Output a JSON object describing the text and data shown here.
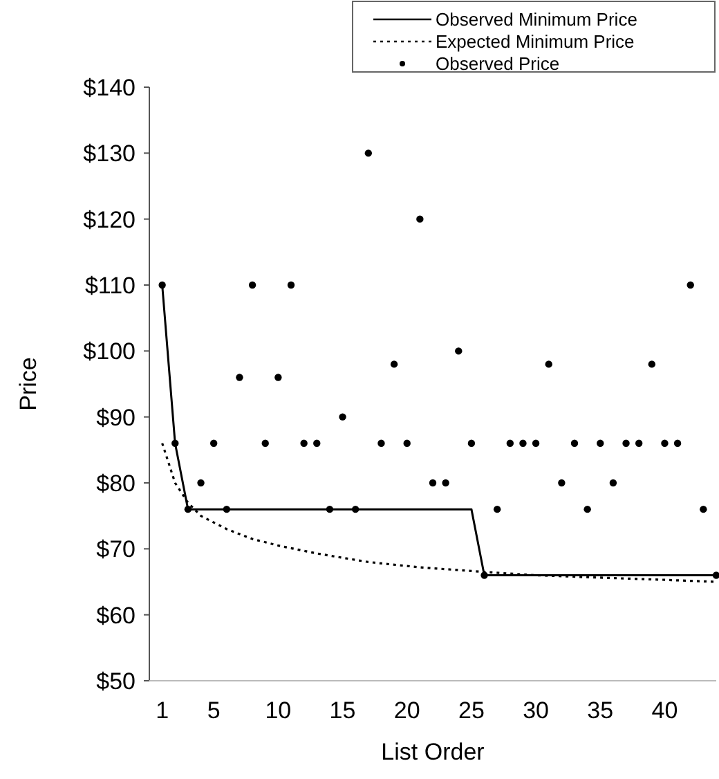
{
  "chart_data": {
    "type": "line",
    "xlabel": "List Order",
    "ylabel": "Price",
    "xlim": [
      0,
      44
    ],
    "ylim": [
      50,
      140
    ],
    "xticks": [
      1,
      5,
      10,
      15,
      20,
      25,
      30,
      35,
      40
    ],
    "yticks": [
      {
        "value": 50,
        "label": "$50"
      },
      {
        "value": 60,
        "label": "$60"
      },
      {
        "value": 70,
        "label": "$70"
      },
      {
        "value": 80,
        "label": "$80"
      },
      {
        "value": 90,
        "label": "$90"
      },
      {
        "value": 100,
        "label": "$100"
      },
      {
        "value": 110,
        "label": "$110"
      },
      {
        "value": 120,
        "label": "$120"
      },
      {
        "value": 130,
        "label": "$130"
      },
      {
        "value": 140,
        "label": "$140"
      }
    ],
    "grid": false,
    "legend": "top right",
    "series": [
      {
        "name": "Observed Minimum Price",
        "line_style": "solid",
        "marker": "none",
        "color": "#000000",
        "x": [
          1,
          2,
          3,
          25,
          26,
          44
        ],
        "values": [
          110,
          86,
          76,
          76,
          66,
          66
        ]
      },
      {
        "name": "Expected Minimum Price",
        "line_style": "dotted",
        "marker": "none",
        "color": "#000000",
        "x": [
          1,
          2,
          3,
          4,
          6,
          8,
          10,
          13,
          17,
          21,
          26,
          30,
          34,
          40,
          44
        ],
        "values": [
          86,
          80,
          77,
          75,
          73,
          71.5,
          70.5,
          69.3,
          68,
          67.2,
          66.5,
          66,
          65.7,
          65.3,
          65
        ]
      },
      {
        "name": "Observed Price",
        "type": "scatter",
        "marker": "circle",
        "color": "#000000",
        "x": [
          1,
          2,
          3,
          4,
          5,
          6,
          7,
          8,
          9,
          10,
          11,
          12,
          13,
          14,
          15,
          16,
          17,
          18,
          19,
          20,
          21,
          22,
          23,
          24,
          25,
          26,
          27,
          28,
          29,
          30,
          31,
          32,
          33,
          34,
          35,
          36,
          37,
          38,
          39,
          40,
          41,
          42,
          43,
          44
        ],
        "values": [
          110,
          86,
          76,
          80,
          86,
          76,
          96,
          110,
          86,
          96,
          110,
          86,
          86,
          76,
          90,
          76,
          130,
          86,
          98,
          86,
          120,
          80,
          80,
          100,
          86,
          66,
          76,
          86,
          86,
          86,
          98,
          80,
          86,
          76,
          86,
          80,
          86,
          86,
          98,
          86,
          86,
          110,
          76,
          66
        ]
      }
    ]
  }
}
